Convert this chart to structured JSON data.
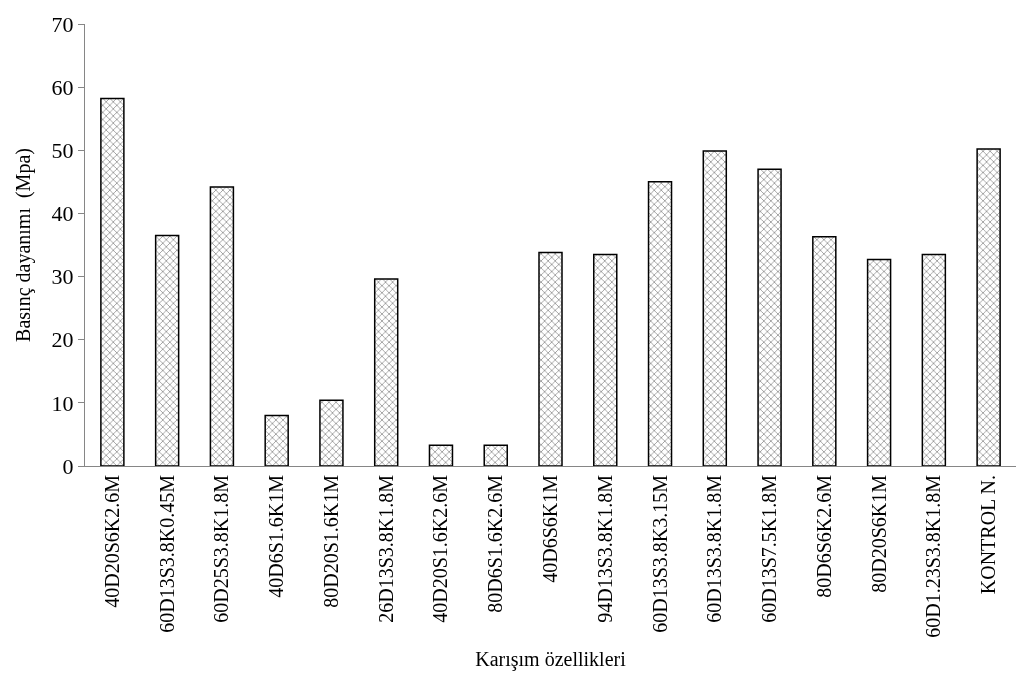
{
  "chart_data": {
    "type": "bar",
    "xlabel": "Karışım özellikleri",
    "ylabel": "Basınç dayanımı  (Mpa)",
    "categories": [
      "40D20S6K2.6M",
      "60D13S3.8K0.45M",
      "60D25S3.8K1.8M",
      "40D6S1.6K1M",
      "80D20S1.6K1M",
      "26D13S3.8K1.8M",
      "40D20S1.6K2.6M",
      "80D6S1.6K2.6M",
      "40D6S6K1M",
      "94D13S3.8K1.8M",
      "60D13S3.8K3.15M",
      "60D13S3.8K1.8M",
      "60D13S7.5K1.8M",
      "80D6S6K2.6M",
      "80D20S6K1M",
      "60D1.23S3.8K1.8M",
      "KONTROL N."
    ],
    "values": [
      58.2,
      36.5,
      44.2,
      8.0,
      10.4,
      29.6,
      3.3,
      3.3,
      33.8,
      33.5,
      45.0,
      49.9,
      47.0,
      36.3,
      32.7,
      33.5,
      50.2
    ],
    "color": "#000000",
    "ylim": [
      0,
      70
    ],
    "yticks": [
      0,
      10,
      20,
      30,
      40,
      50,
      60,
      70
    ],
    "legend": false
  }
}
